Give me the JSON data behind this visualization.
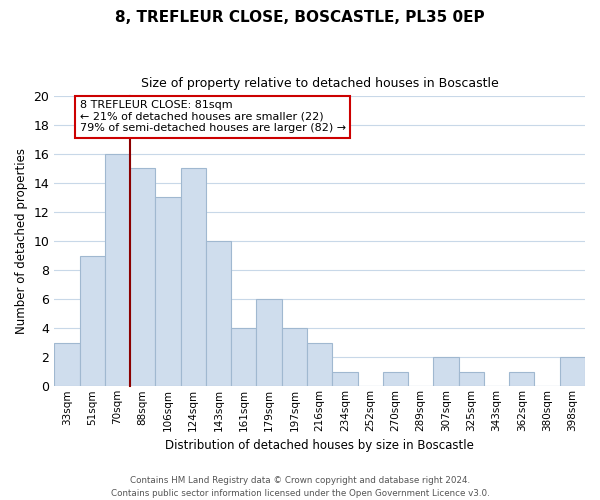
{
  "title": "8, TREFLEUR CLOSE, BOSCASTLE, PL35 0EP",
  "subtitle": "Size of property relative to detached houses in Boscastle",
  "xlabel": "Distribution of detached houses by size in Boscastle",
  "ylabel": "Number of detached properties",
  "categories": [
    "33sqm",
    "51sqm",
    "70sqm",
    "88sqm",
    "106sqm",
    "124sqm",
    "143sqm",
    "161sqm",
    "179sqm",
    "197sqm",
    "216sqm",
    "234sqm",
    "252sqm",
    "270sqm",
    "289sqm",
    "307sqm",
    "325sqm",
    "343sqm",
    "362sqm",
    "380sqm",
    "398sqm"
  ],
  "values": [
    3,
    9,
    16,
    15,
    13,
    15,
    10,
    4,
    6,
    4,
    3,
    1,
    0,
    1,
    0,
    2,
    1,
    0,
    1,
    0,
    2
  ],
  "bar_color": "#cfdded",
  "bar_edge_color": "#a0b8d0",
  "highlight_line_color": "#8b0000",
  "annotation_text": "8 TREFLEUR CLOSE: 81sqm\n← 21% of detached houses are smaller (22)\n79% of semi-detached houses are larger (82) →",
  "annotation_box_color": "#ffffff",
  "annotation_box_edge_color": "#cc0000",
  "ylim": [
    0,
    20
  ],
  "yticks": [
    0,
    2,
    4,
    6,
    8,
    10,
    12,
    14,
    16,
    18,
    20
  ],
  "footer_line1": "Contains HM Land Registry data © Crown copyright and database right 2024.",
  "footer_line2": "Contains public sector information licensed under the Open Government Licence v3.0.",
  "background_color": "#ffffff",
  "grid_color": "#c8d8e8",
  "red_line_bar_index": 2
}
